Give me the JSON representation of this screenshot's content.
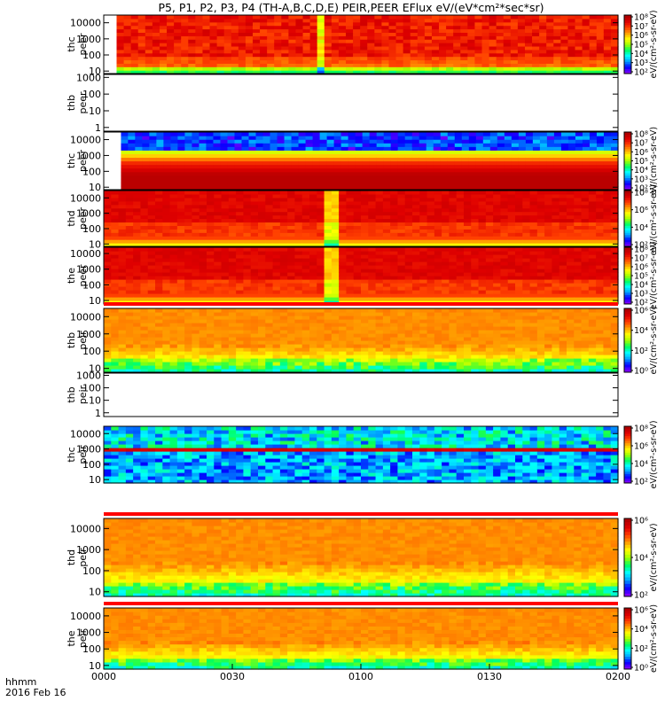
{
  "chart_data": {
    "type": "heatmap",
    "title": "P5, P1, P2, P3, P4 (TH-A,B,C,D,E) PEIR,PEER EFlux eV/(eV*cm²*sec*sr)",
    "x_axis": {
      "label_line1": "hhmm",
      "label_line2": "2016 Feb 16",
      "range": [
        "0000",
        "0200"
      ],
      "ticks": [
        "0000",
        "0030",
        "0100",
        "0130",
        "0200"
      ],
      "tick_minutes": [
        0,
        30,
        60,
        90,
        120
      ]
    },
    "colorbar_units_text": "eV/(cm²-s-sr-eV)",
    "colorscale": [
      "#7f00ff",
      "#0000ff",
      "#00a0ff",
      "#00ffff",
      "#00ff60",
      "#a0ff00",
      "#ffff00",
      "#ffa000",
      "#ff4000",
      "#e00000",
      "#b00000"
    ],
    "panels": [
      {
        "label": "thc peer",
        "line1": "thc",
        "line2": "peer",
        "yticks": [
          "10",
          "100",
          "1000",
          "10000"
        ],
        "ylim": [
          7,
          30000
        ],
        "log_y": true,
        "empty": false,
        "start_minute": 3,
        "cbar_ticks": [
          "10²",
          "10³",
          "10⁴",
          "10⁵",
          "10⁶",
          "10⁷",
          "10⁸"
        ],
        "cbar_range": [
          2,
          8
        ],
        "profile": "peer_hot",
        "dip_minute": 50
      },
      {
        "label": "thb peer",
        "line1": "thb",
        "line2": "peer",
        "yticks": [
          "1",
          "10",
          "100",
          "1000"
        ],
        "ylim": [
          0.6,
          1500
        ],
        "log_y": true,
        "empty": true
      },
      {
        "label": "thc peer",
        "line1": "thc",
        "line2": "peer",
        "yticks": [
          "10",
          "100",
          "1000",
          "10000"
        ],
        "ylim": [
          7,
          30000
        ],
        "log_y": true,
        "empty": false,
        "start_minute": 4,
        "cbar_ticks": [
          "10²",
          "10³",
          "10⁴",
          "10⁵",
          "10⁶",
          "10⁷",
          "10⁸"
        ],
        "cbar_range": [
          2,
          8
        ],
        "profile": "peer_cold"
      },
      {
        "label": "thd peer",
        "line1": "thd",
        "line2": "peer",
        "yticks": [
          "10",
          "100",
          "1000",
          "10000"
        ],
        "ylim": [
          7,
          30000
        ],
        "log_y": true,
        "empty": false,
        "start_minute": 0,
        "cbar_ticks": [
          "10²",
          "10⁴",
          "10⁶",
          "10⁸"
        ],
        "cbar_range": [
          2,
          8
        ],
        "profile": "peer_mid",
        "dip_minute": 52
      },
      {
        "label": "the peer",
        "line1": "the",
        "line2": "peer",
        "yticks": [
          "10",
          "100",
          "1000",
          "10000"
        ],
        "ylim": [
          6,
          25000
        ],
        "log_y": true,
        "empty": false,
        "start_minute": 0,
        "cbar_ticks": [
          "10²",
          "10³",
          "10⁴",
          "10⁵",
          "10⁶",
          "10⁷",
          "10⁸"
        ],
        "cbar_range": [
          2,
          8
        ],
        "profile": "peer_mid",
        "dip_minute": 52
      },
      {
        "label": "thb peir",
        "line1": "thb",
        "line2": "peir",
        "yticks": [
          "10",
          "100",
          "1000",
          "10000"
        ],
        "ylim": [
          6,
          30000
        ],
        "log_y": true,
        "empty": false,
        "start_minute": 0,
        "cbar_ticks": [
          "10⁰",
          "10²",
          "10⁴",
          "10⁶"
        ],
        "cbar_range": [
          0,
          7
        ],
        "profile": "peir"
      },
      {
        "label": "thb peir",
        "line1": "thb",
        "line2": "peir",
        "yticks": [
          "1",
          "10",
          "100",
          "1000"
        ],
        "ylim": [
          0.5,
          1500
        ],
        "log_y": true,
        "empty": true
      },
      {
        "label": "thc peir",
        "line1": "thc",
        "line2": "peir",
        "yticks": [
          "10",
          "100",
          "1000",
          "10000"
        ],
        "ylim": [
          6,
          30000
        ],
        "log_y": true,
        "empty": false,
        "start_minute": 0,
        "cbar_ticks": [
          "10²",
          "10⁴",
          "10⁶",
          "10⁸"
        ],
        "cbar_range": [
          1,
          8
        ],
        "profile": "peir_band"
      },
      {
        "label": "thd peir",
        "line1": "thd",
        "line2": "peir",
        "yticks": [
          "10",
          "100",
          "1000",
          "10000"
        ],
        "ylim": [
          6,
          30000
        ],
        "log_y": true,
        "empty": false,
        "start_minute": 0,
        "cbar_ticks": [
          "10²",
          "10⁴",
          "10⁶"
        ],
        "cbar_range": [
          1,
          7
        ],
        "profile": "peir"
      },
      {
        "label": "the peir",
        "line1": "the",
        "line2": "peir",
        "yticks": [
          "10",
          "100",
          "1000",
          "10000"
        ],
        "ylim": [
          6,
          30000
        ],
        "log_y": true,
        "empty": false,
        "start_minute": 0,
        "cbar_ticks": [
          "10⁰",
          "10²",
          "10⁴",
          "10⁶"
        ],
        "cbar_range": [
          0,
          7
        ],
        "profile": "peir"
      }
    ]
  }
}
